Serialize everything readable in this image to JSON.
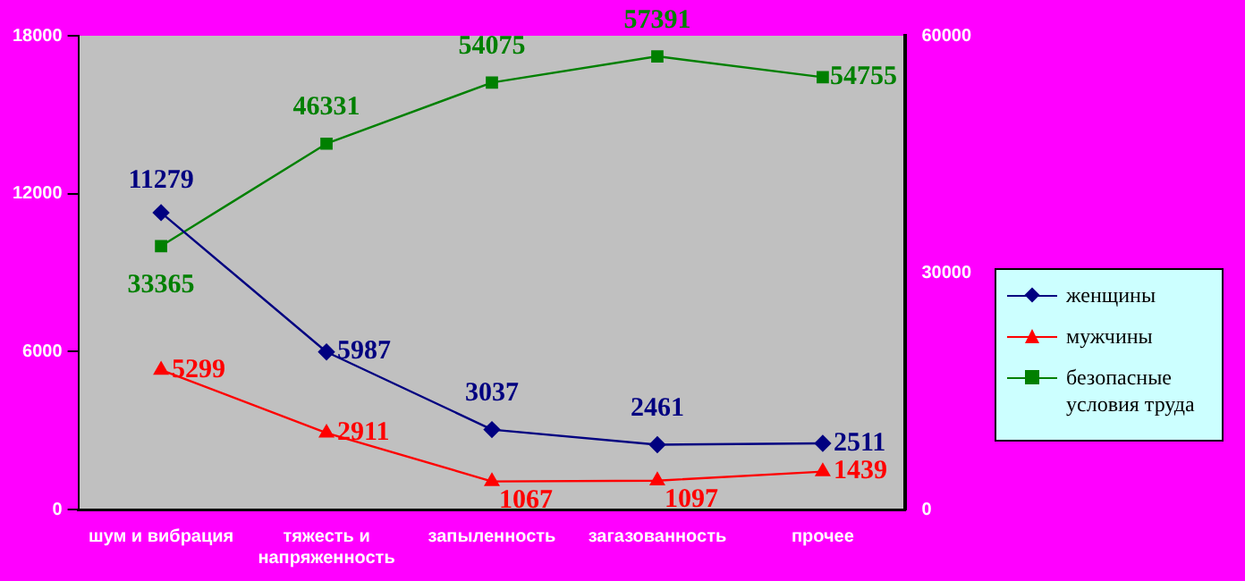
{
  "chart_data": {
    "type": "line",
    "categories": [
      "шум и вибрация",
      "тяжесть и напряженность",
      "запыленность",
      "загазованность",
      "прочее"
    ],
    "series": [
      {
        "name": "женщины",
        "color": "#000080",
        "values": [
          11279,
          5987,
          3037,
          2461,
          2511
        ],
        "marker": "diamond"
      },
      {
        "name": "мужчины",
        "color": "#ff0000",
        "values": [
          5299,
          2911,
          1067,
          1097,
          1439
        ],
        "marker": "triangle"
      },
      {
        "name": "безопасные условия труда",
        "color": "#008000",
        "values": [
          33365,
          46331,
          54075,
          57391,
          54755
        ],
        "marker": "square",
        "axis": "y2"
      }
    ],
    "ylim": [
      0,
      18000
    ],
    "yticks": [
      0,
      6000,
      12000,
      18000
    ],
    "y2lim": [
      0,
      60000
    ],
    "y2ticks": [
      0,
      30000,
      60000
    ],
    "data_labels": true,
    "grid": false,
    "legend": "right"
  }
}
